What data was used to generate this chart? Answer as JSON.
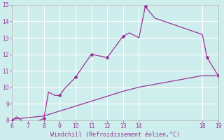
{
  "xlabel": "Windchill (Refroidissement éolien,°C)",
  "bg_color": "#ceeeed",
  "grid_color": "#ffffff",
  "line_color": "#993399",
  "tick_color": "#993399",
  "xlim": [
    6,
    19
  ],
  "ylim": [
    8,
    15
  ],
  "xticks": [
    6,
    7,
    8,
    9,
    10,
    11,
    12,
    13,
    14,
    18,
    19
  ],
  "yticks": [
    8,
    9,
    10,
    11,
    12,
    13,
    14,
    15
  ],
  "curve1_x": [
    6.0,
    6.3,
    7.0,
    8.0,
    8.3,
    8.7,
    9.0,
    9.3,
    10.0,
    11.0,
    12.0,
    13.0,
    13.4,
    14.0,
    14.4,
    15.0,
    18.0,
    18.3,
    19.0
  ],
  "curve1_y": [
    8.0,
    8.2,
    7.7,
    8.1,
    9.7,
    9.5,
    9.5,
    9.9,
    10.6,
    12.0,
    11.8,
    13.1,
    13.3,
    13.0,
    14.9,
    14.2,
    13.2,
    11.8,
    10.7
  ],
  "curve2_x": [
    6.0,
    7.0,
    8.0,
    9.0,
    10.0,
    11.0,
    12.0,
    13.0,
    14.0,
    18.0,
    19.0
  ],
  "curve2_y": [
    8.05,
    8.15,
    8.25,
    8.55,
    8.85,
    9.15,
    9.45,
    9.75,
    10.0,
    10.7,
    10.7
  ],
  "marker_x": [
    6.0,
    7.0,
    8.0,
    9.0,
    10.0,
    11.0,
    12.0,
    13.0,
    14.4,
    18.3,
    19.0
  ],
  "marker_y": [
    8.0,
    7.7,
    8.1,
    9.5,
    10.6,
    12.0,
    11.8,
    13.1,
    14.9,
    11.8,
    10.7
  ]
}
